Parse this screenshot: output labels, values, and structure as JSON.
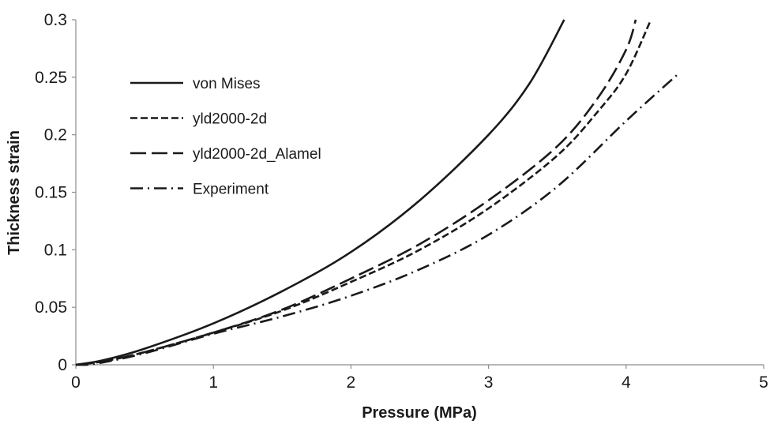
{
  "chart_data": {
    "type": "line",
    "xlabel": "Pressure (MPa)",
    "ylabel": "Thickness strain",
    "xlim": [
      0,
      5
    ],
    "ylim": [
      0,
      0.3
    ],
    "x_ticks": [
      "0",
      "1",
      "2",
      "3",
      "4",
      "5"
    ],
    "y_ticks": [
      "0",
      "0.05",
      "0.1",
      "0.15",
      "0.2",
      "0.25",
      "0.3"
    ],
    "grid": false,
    "legend_position": "upper-left",
    "series": [
      {
        "name": "von Mises",
        "style": "solid",
        "x": [
          0,
          0.2,
          0.5,
          1.0,
          1.5,
          2.0,
          2.5,
          3.0,
          3.3,
          3.55
        ],
        "y": [
          0,
          0.004,
          0.014,
          0.036,
          0.064,
          0.098,
          0.143,
          0.2,
          0.245,
          0.3
        ]
      },
      {
        "name": "yld2000-2d",
        "style": "dashed",
        "x": [
          0,
          0.2,
          0.5,
          1.0,
          1.5,
          2.0,
          2.5,
          3.0,
          3.5,
          3.8,
          4.0,
          4.18
        ],
        "y": [
          0,
          0.003,
          0.011,
          0.028,
          0.047,
          0.072,
          0.1,
          0.136,
          0.182,
          0.221,
          0.253,
          0.3
        ]
      },
      {
        "name": "yld2000-2d_Alamel",
        "style": "longdash",
        "x": [
          0,
          0.2,
          0.5,
          1.0,
          1.5,
          2.0,
          2.5,
          3.0,
          3.5,
          3.8,
          4.0,
          4.07
        ],
        "y": [
          0,
          0.003,
          0.011,
          0.028,
          0.048,
          0.075,
          0.105,
          0.143,
          0.19,
          0.233,
          0.274,
          0.3
        ]
      },
      {
        "name": "Experiment",
        "style": "dashdot",
        "x": [
          0,
          0.15,
          0.5,
          1.0,
          1.5,
          2.0,
          2.5,
          3.0,
          3.5,
          4.0,
          4.37
        ],
        "y": [
          0,
          0.001,
          0.01,
          0.027,
          0.042,
          0.06,
          0.083,
          0.113,
          0.155,
          0.212,
          0.252
        ]
      }
    ]
  }
}
